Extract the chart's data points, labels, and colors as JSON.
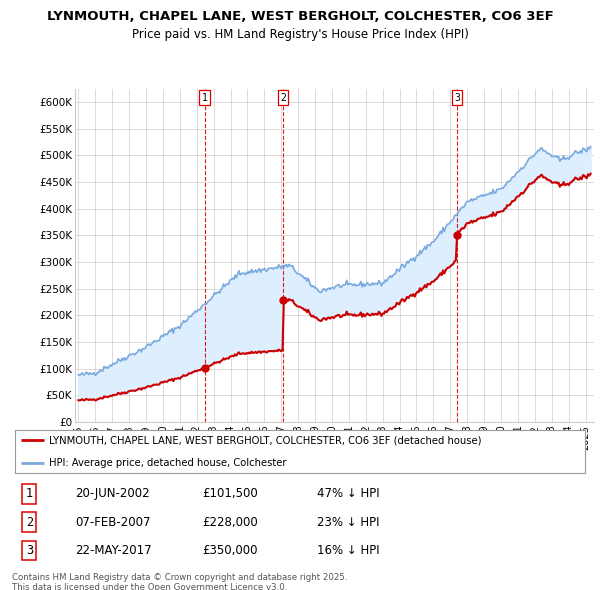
{
  "title1": "LYNMOUTH, CHAPEL LANE, WEST BERGHOLT, COLCHESTER, CO6 3EF",
  "title2": "Price paid vs. HM Land Registry's House Price Index (HPI)",
  "ylabel_ticks": [
    "£0",
    "£50K",
    "£100K",
    "£150K",
    "£200K",
    "£250K",
    "£300K",
    "£350K",
    "£400K",
    "£450K",
    "£500K",
    "£550K",
    "£600K"
  ],
  "ytick_vals": [
    0,
    50000,
    100000,
    150000,
    200000,
    250000,
    300000,
    350000,
    400000,
    450000,
    500000,
    550000,
    600000
  ],
  "ylim": [
    0,
    625000
  ],
  "sale_prices": [
    101500,
    228000,
    350000
  ],
  "sale_labels": [
    "1",
    "2",
    "3"
  ],
  "sale_pct": [
    "47% ↓ HPI",
    "23% ↓ HPI",
    "16% ↓ HPI"
  ],
  "sale_date_strs": [
    "20-JUN-2002",
    "07-FEB-2007",
    "22-MAY-2017"
  ],
  "sale_price_strs": [
    "£101,500",
    "£228,000",
    "£350,000"
  ],
  "sale_year_floats": [
    2002.47,
    2007.1,
    2017.39
  ],
  "vline_color": "#dd0000",
  "hpi_color": "#7aaadd",
  "price_color": "#cc0000",
  "fill_color": "#ddeeff",
  "legend_label1": "LYNMOUTH, CHAPEL LANE, WEST BERGHOLT, COLCHESTER, CO6 3EF (detached house)",
  "legend_label2": "HPI: Average price, detached house, Colchester",
  "footer1": "Contains HM Land Registry data © Crown copyright and database right 2025.",
  "footer2": "This data is licensed under the Open Government Licence v3.0.",
  "xlim_start": 1994.8,
  "xlim_end": 2025.5
}
